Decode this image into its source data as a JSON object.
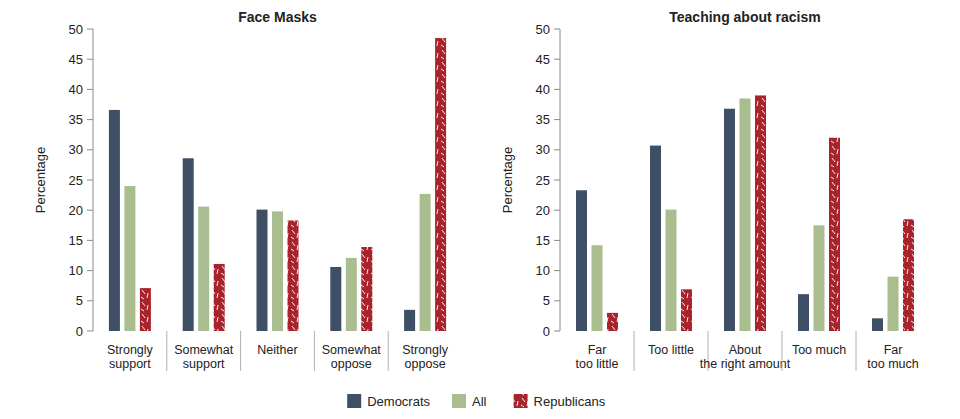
{
  "chart_data": [
    {
      "type": "bar",
      "title": "Face Masks",
      "y_label": "Percentage",
      "categories": [
        "Strongly\nsupport",
        "Somewhat\nsupport",
        "Neither",
        "Somewhat\noppose",
        "Strongly\noppose"
      ],
      "series": [
        {
          "name": "Democrats",
          "color": "#3e4f66",
          "values": [
            36.6,
            28.6,
            20.1,
            10.6,
            3.5
          ]
        },
        {
          "name": "All",
          "color": "#a9bd8e",
          "values": [
            24,
            20.6,
            19.8,
            12.1,
            22.7
          ]
        },
        {
          "name": "Republicans",
          "color": "#a8232b",
          "values": [
            7.1,
            11.1,
            18.3,
            13.9,
            48.5
          ]
        }
      ],
      "ylim": [
        0,
        50
      ],
      "yticks": [
        0,
        5,
        10,
        15,
        20,
        25,
        30,
        35,
        40,
        45,
        50
      ],
      "legend": "bottom"
    },
    {
      "type": "bar",
      "title": "Teaching about racism",
      "y_label": "Percentage",
      "categories": [
        "Far\ntoo little",
        "Too little",
        "About\nthe right amount",
        "Too much",
        "Far\ntoo much"
      ],
      "series": [
        {
          "name": "Democrats",
          "color": "#3e4f66",
          "values": [
            23.3,
            30.7,
            36.8,
            6.1,
            2.1
          ]
        },
        {
          "name": "All",
          "color": "#a9bd8e",
          "values": [
            14.2,
            20.1,
            38.5,
            17.5,
            9
          ]
        },
        {
          "name": "Republicans",
          "color": "#a8232b",
          "values": [
            3,
            6.9,
            39,
            32,
            18.5
          ]
        }
      ],
      "ylim": [
        0,
        50
      ],
      "yticks": [
        0,
        5,
        10,
        15,
        20,
        25,
        30,
        35,
        40,
        45,
        50
      ],
      "legend": "bottom"
    }
  ]
}
